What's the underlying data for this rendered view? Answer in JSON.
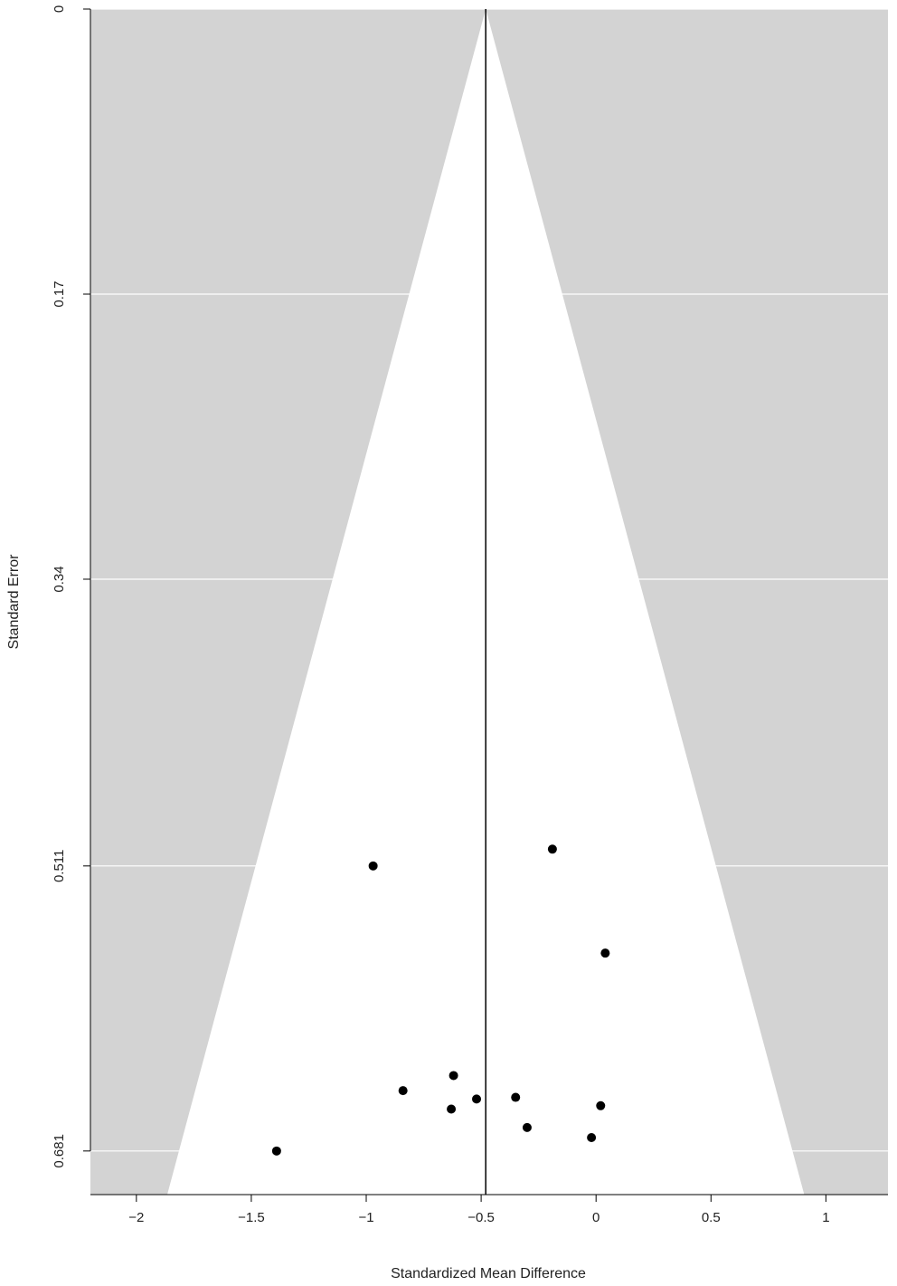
{
  "chart_data": {
    "type": "scatter",
    "subtype": "funnel plot",
    "title": "",
    "xlabel": "Standardized Mean Difference",
    "ylabel": "Standard Error",
    "xlim": [
      -2.2,
      1.27
    ],
    "ylim": [
      0,
      0.707
    ],
    "y_reversed": true,
    "x_ticks": [
      -2,
      -1.5,
      -1,
      -0.5,
      0,
      0.5,
      1
    ],
    "x_tick_labels": [
      "−2",
      "−1.5",
      "−1",
      "−0.5",
      "0",
      "0.5",
      "1"
    ],
    "y_ticks": [
      0,
      0.17,
      0.34,
      0.511,
      0.681
    ],
    "y_tick_labels": [
      "0",
      "0.17",
      "0.34",
      "0.511",
      "0.681"
    ],
    "pooled_estimate": -0.48,
    "funnel_z": 1.96,
    "grid": "horizontal at y ticks",
    "colors": {
      "background": "#d3d3d3",
      "funnel": "#ffffff",
      "points": "#000000",
      "gridline": "#ffffff",
      "axis": "#000000"
    },
    "points": [
      {
        "x": -0.19,
        "y": 0.501
      },
      {
        "x": -0.97,
        "y": 0.511
      },
      {
        "x": 0.04,
        "y": 0.563
      },
      {
        "x": -0.62,
        "y": 0.636
      },
      {
        "x": -0.84,
        "y": 0.645
      },
      {
        "x": -0.52,
        "y": 0.65
      },
      {
        "x": -0.35,
        "y": 0.649
      },
      {
        "x": -0.63,
        "y": 0.656
      },
      {
        "x": 0.02,
        "y": 0.654
      },
      {
        "x": -0.3,
        "y": 0.667
      },
      {
        "x": -0.02,
        "y": 0.673
      },
      {
        "x": -1.39,
        "y": 0.681
      }
    ]
  }
}
